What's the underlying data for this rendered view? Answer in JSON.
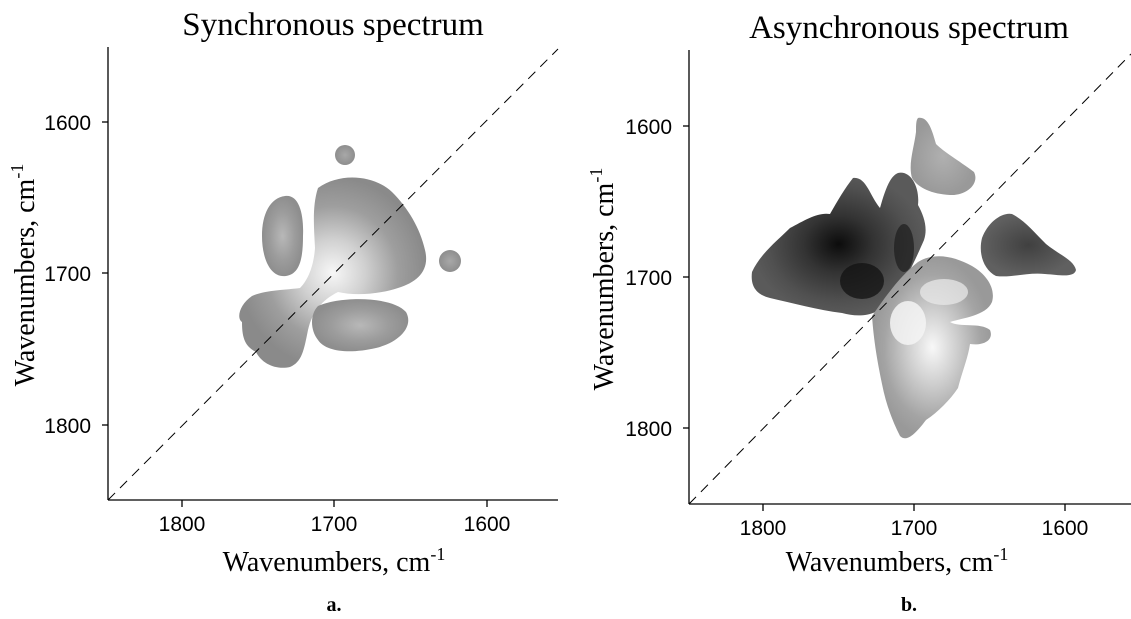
{
  "chart_data": [
    {
      "type": "heatmap",
      "title": "Synchronous spectrum",
      "xlabel": "Wavenumbers, cm",
      "xlabel_sup": "-1",
      "ylabel": "Wavenumbers, cm",
      "ylabel_sup": "-1",
      "xlim": [
        1850,
        1550
      ],
      "ylim": [
        1550,
        1850
      ],
      "ticks": [
        1800,
        1700,
        1600
      ],
      "tick_labels": [
        "1800",
        "1700",
        "1600"
      ],
      "diagonal": "dashed",
      "grid": false,
      "panel_label": "a.",
      "peaks": [
        {
          "x": 1690,
          "y": 1690,
          "intensity": 1.0
        },
        {
          "x": 1732,
          "y": 1732,
          "intensity": 0.55
        },
        {
          "x": 1732,
          "y": 1677,
          "intensity": 0.45
        },
        {
          "x": 1680,
          "y": 1734,
          "intensity": 0.45
        },
        {
          "x": 1694,
          "y": 1620,
          "intensity": 0.3
        },
        {
          "x": 1620,
          "y": 1691,
          "intensity": 0.3
        }
      ]
    },
    {
      "type": "heatmap",
      "title": "Asynchronous spectrum",
      "xlabel": "Wavenumbers, cm",
      "xlabel_sup": "-1",
      "ylabel": "Wavenumbers, cm",
      "ylabel_sup": "-1",
      "xlim": [
        1850,
        1550
      ],
      "ylim": [
        1550,
        1850
      ],
      "ticks": [
        1800,
        1700,
        1600
      ],
      "tick_labels": [
        "1800",
        "1700",
        "1600"
      ],
      "diagonal": "dashed",
      "grid": false,
      "panel_label": "b.",
      "peaks": [
        {
          "x": 1735,
          "y": 1705,
          "sign": "negative",
          "intensity": 1.0
        },
        {
          "x": 1708,
          "y": 1685,
          "sign": "negative",
          "intensity": 0.8
        },
        {
          "x": 1775,
          "y": 1695,
          "sign": "negative",
          "intensity": 0.55
        },
        {
          "x": 1648,
          "y": 1690,
          "sign": "negative",
          "intensity": 0.6
        },
        {
          "x": 1705,
          "y": 1735,
          "sign": "positive",
          "intensity": 1.0
        },
        {
          "x": 1685,
          "y": 1712,
          "sign": "positive",
          "intensity": 0.8
        },
        {
          "x": 1690,
          "y": 1640,
          "sign": "positive",
          "intensity": 0.45
        },
        {
          "x": 1690,
          "y": 1780,
          "sign": "positive",
          "intensity": 0.45
        }
      ]
    }
  ]
}
